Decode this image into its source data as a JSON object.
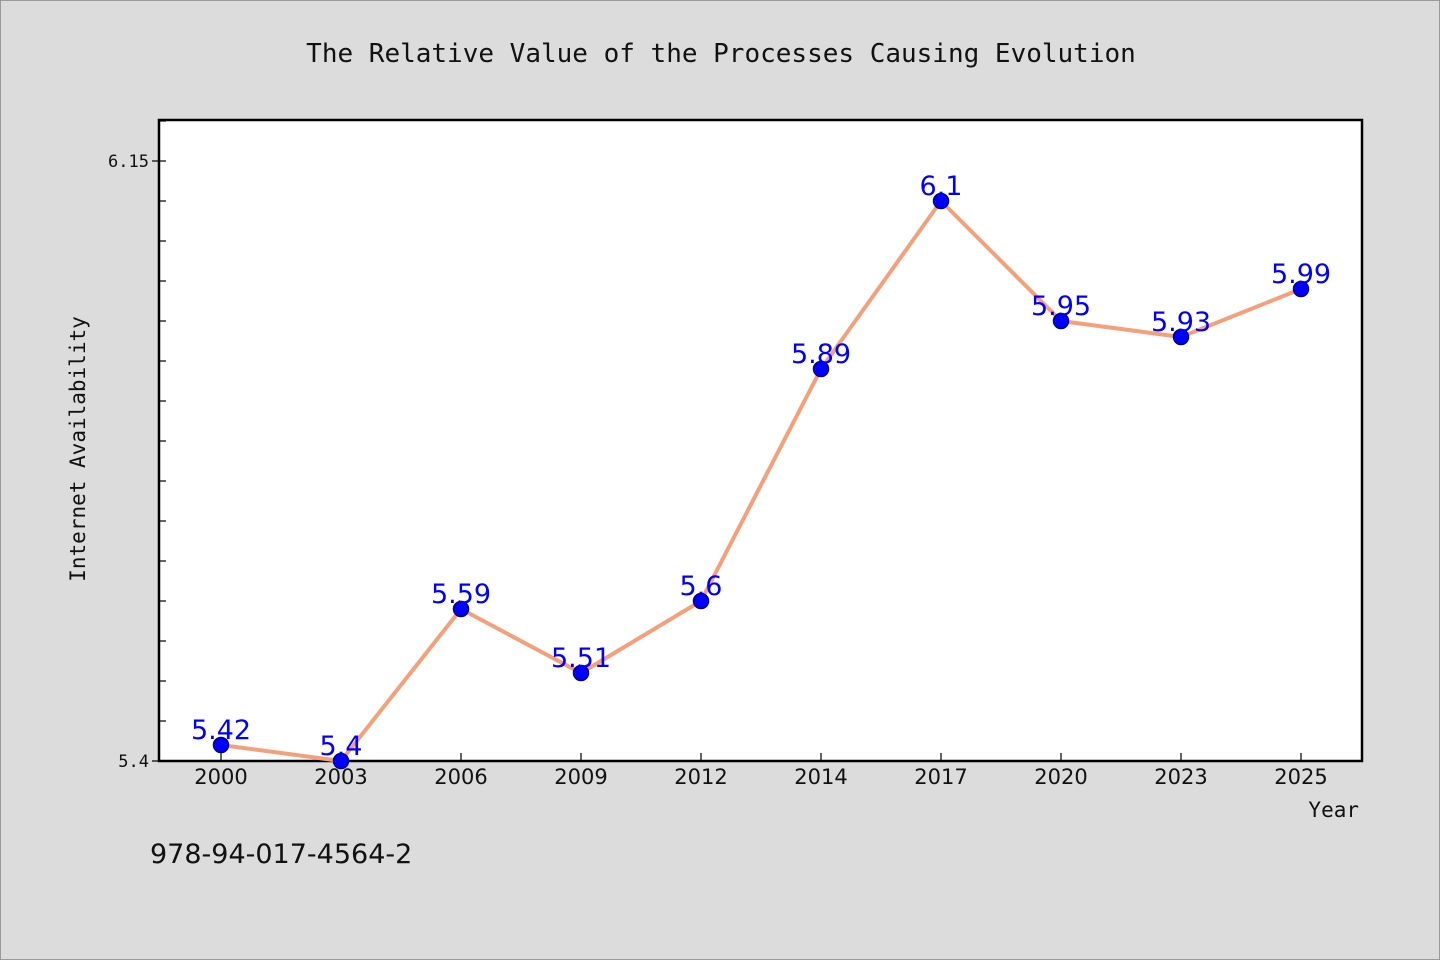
{
  "chart_data": {
    "type": "line",
    "title": "The Relative Value of the Processes Causing Evolution",
    "xlabel": "Year",
    "ylabel": "Internet Availability",
    "categories": [
      "2000",
      "2003",
      "2006",
      "2009",
      "2012",
      "2014",
      "2017",
      "2020",
      "2023",
      "2025"
    ],
    "series": [
      {
        "values": [
          5.42,
          5.4,
          5.59,
          5.51,
          5.6,
          5.89,
          6.1,
          5.95,
          5.93,
          5.99
        ],
        "data_labels": [
          "5.42",
          "5.4",
          "5.59",
          "5.51",
          "5.6",
          "5.89",
          "6.1",
          "5.95",
          "5.93",
          "5.99"
        ]
      }
    ],
    "ylim": [
      5.4,
      6.2
    ],
    "y_tick_labels": [
      "5.4",
      "6.15"
    ],
    "grid": false,
    "legend": "none",
    "colors": {
      "line": "#f4a07a",
      "marker": "#0000ff",
      "marker_edge": "#00008b",
      "data_label": "#0000ff",
      "background": "#dcdcdc",
      "plot_area": "#ffffff"
    }
  },
  "footer_code": "978-94-017-4564-2"
}
